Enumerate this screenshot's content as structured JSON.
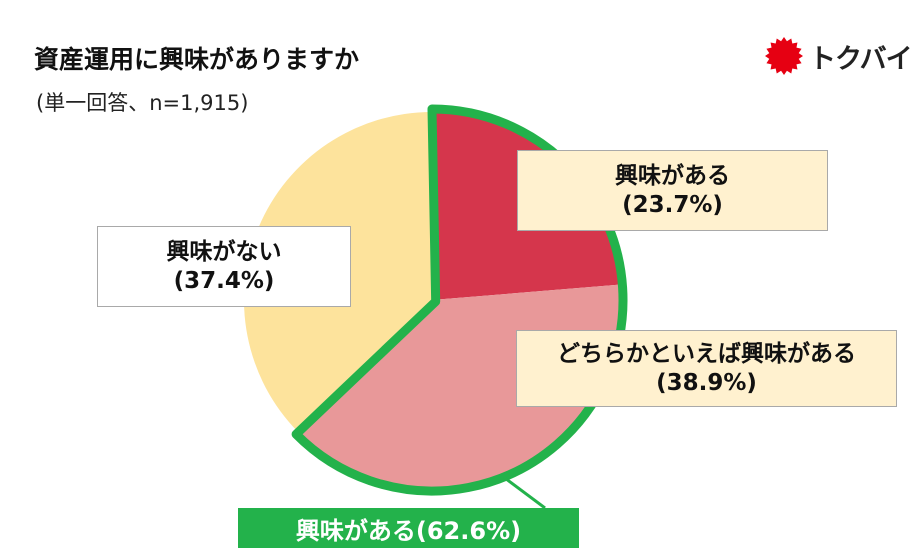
{
  "title": "資産運用に興味がありますか",
  "subtitle": "(単一回答、n=1,915)",
  "logo": {
    "text": "トクバイ",
    "mark_color": "#e60012"
  },
  "chart_data": {
    "type": "pie",
    "title": "資産運用に興味がありますか",
    "subtitle": "(単一回答、n=1,915)",
    "start": "12 o'clock",
    "direction": "clockwise",
    "slices": [
      {
        "label": "興味がある",
        "value": 23.7,
        "value_label": "(23.7%)",
        "color": "#d5364c"
      },
      {
        "label": "どちらかといえば興味がある",
        "value": 38.9,
        "value_label": "(38.9%)",
        "color": "#e89899"
      },
      {
        "label": "興味がない",
        "value": 37.4,
        "value_label": "(37.4%)",
        "color": "#fde39c"
      }
    ],
    "group_highlight": {
      "label": "興味がある(62.6%)",
      "slices": [
        0,
        1
      ],
      "value": 62.6,
      "color": "#23b24b"
    },
    "label_box_colors": {
      "興味がある": "#fff1cf",
      "どちらかといえば興味がある": "#fff1cf",
      "興味がない": "#ffffff"
    }
  }
}
